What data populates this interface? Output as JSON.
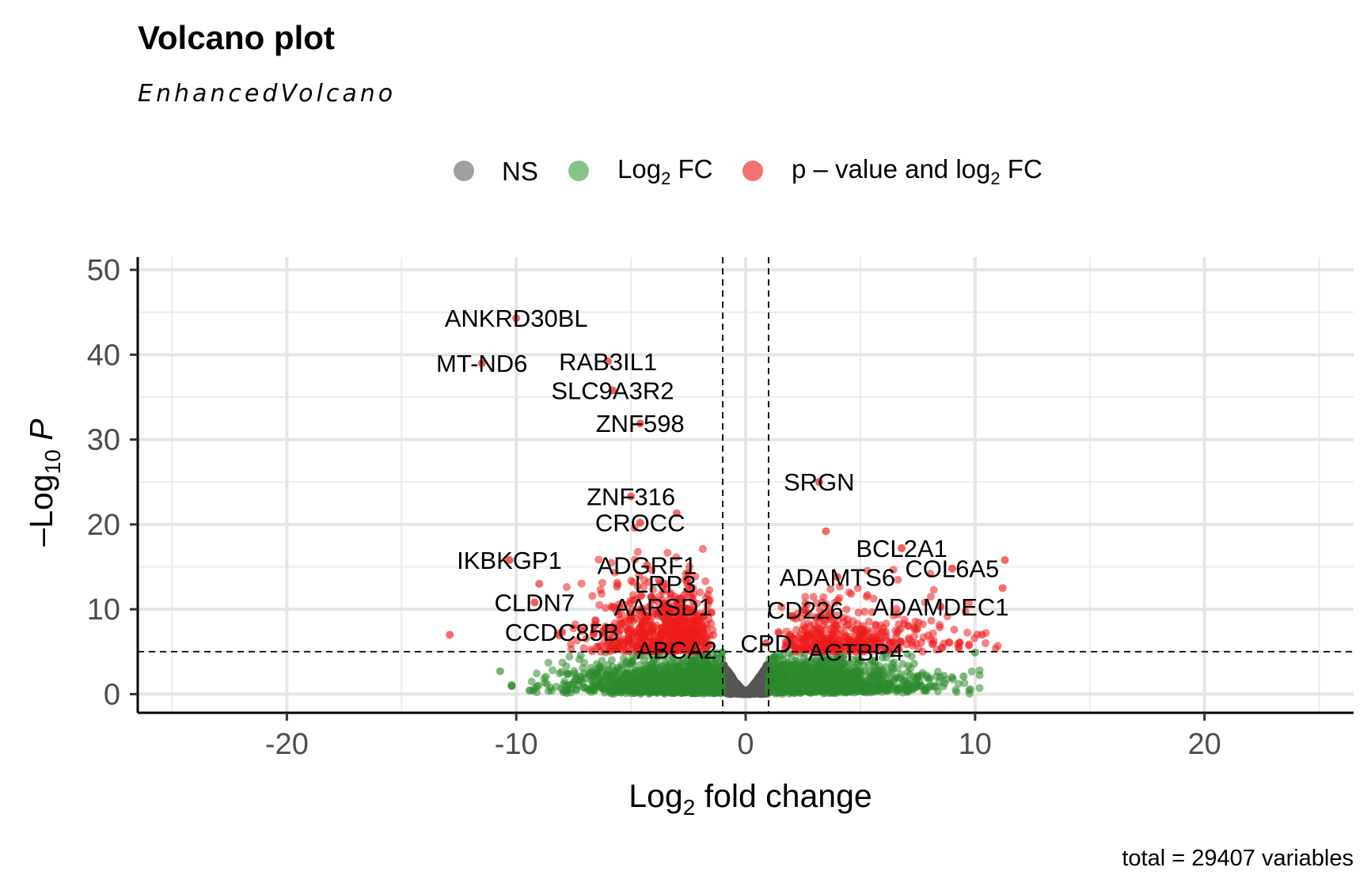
{
  "chart_data": {
    "type": "scatter",
    "title": "Volcano plot",
    "subtitle": "EnhancedVolcano",
    "xlabel_main": "Log",
    "xlabel_sub": "2",
    "xlabel_rest": " fold change",
    "ylabel_prefix": "–Log",
    "ylabel_sub": "10",
    "ylabel_var": " P",
    "caption": "total = 29407 variables",
    "xlim": [
      -26.5,
      26.5
    ],
    "ylim": [
      -2.2,
      51.5
    ],
    "x_ticks": [
      -20,
      -10,
      0,
      10,
      20
    ],
    "x_tick_labels": [
      "-20",
      "-10",
      "0",
      "10",
      "20"
    ],
    "y_ticks": [
      0,
      10,
      20,
      30,
      40,
      50
    ],
    "y_tick_labels": [
      "0",
      "10",
      "20",
      "30",
      "40",
      "50"
    ],
    "fc_cutoff": 1,
    "p_cutoff": 5,
    "grid": true,
    "legend_position": "top",
    "legend": [
      {
        "key": "ns",
        "text": "NS",
        "color": "#7f7f7f"
      },
      {
        "key": "fc",
        "text_main": "Log",
        "text_sub": "2",
        "text_rest": " FC",
        "color": "#3a9a3a"
      },
      {
        "key": "both",
        "text_main": "p – value and log",
        "text_sub": "2",
        "text_rest": " FC",
        "color": "#ee1111"
      }
    ],
    "colors": {
      "ns": "#555555",
      "fc": "#2e8b2e",
      "both": "#ee1c1c"
    },
    "labeled_genes": [
      {
        "name": "ANKRD30BL",
        "x": -10.0,
        "y": 44.3
      },
      {
        "name": "MT-ND6",
        "x": -11.5,
        "y": 39.0
      },
      {
        "name": "RAB3IL1",
        "x": -6.0,
        "y": 39.2
      },
      {
        "name": "SLC9A3R2",
        "x": -5.8,
        "y": 35.8
      },
      {
        "name": "ZNF598",
        "x": -4.6,
        "y": 31.9
      },
      {
        "name": "SRGN",
        "x": 3.2,
        "y": 25.0
      },
      {
        "name": "ZNF316",
        "x": -5.0,
        "y": 23.3
      },
      {
        "name": "CROCC",
        "x": -4.6,
        "y": 20.2
      },
      {
        "name": "BCL2A1",
        "x": 6.8,
        "y": 17.2
      },
      {
        "name": "IKBKGP1",
        "x": -10.3,
        "y": 15.8
      },
      {
        "name": "ADGRF1",
        "x": -4.3,
        "y": 15.2
      },
      {
        "name": "COL6A5",
        "x": 9.0,
        "y": 14.8
      },
      {
        "name": "ADAMTS6",
        "x": 4.0,
        "y": 13.8
      },
      {
        "name": "LRP3",
        "x": -3.5,
        "y": 13.0
      },
      {
        "name": "CLDN7",
        "x": -9.2,
        "y": 10.8
      },
      {
        "name": "AARSD1",
        "x": -3.6,
        "y": 10.3
      },
      {
        "name": "CD226",
        "x": 2.6,
        "y": 9.9
      },
      {
        "name": "ADAMDEC1",
        "x": 8.5,
        "y": 10.3
      },
      {
        "name": "CCDC85B",
        "x": -8.0,
        "y": 7.3
      },
      {
        "name": "CPD",
        "x": 0.9,
        "y": 6.0
      },
      {
        "name": "ABCA2",
        "x": -3.0,
        "y": 5.2
      },
      {
        "name": "ACTBP4",
        "x": 4.8,
        "y": 5.0
      }
    ],
    "extra_points": [
      {
        "x": -12.9,
        "y": 7.0,
        "group": "both"
      },
      {
        "x": -10.7,
        "y": 2.7,
        "group": "fc"
      },
      {
        "x": -9.0,
        "y": 13.0,
        "group": "both"
      },
      {
        "x": -3.0,
        "y": 21.3,
        "group": "both"
      },
      {
        "x": 3.5,
        "y": 19.2,
        "group": "both"
      },
      {
        "x": 11.3,
        "y": 15.8,
        "group": "both"
      },
      {
        "x": 11.2,
        "y": 12.5,
        "group": "both"
      },
      {
        "x": 10.3,
        "y": 7.0,
        "group": "both"
      },
      {
        "x": 10.0,
        "y": 4.9,
        "group": "fc"
      },
      {
        "x": 9.5,
        "y": 2.1,
        "group": "fc"
      },
      {
        "x": 9.0,
        "y": 2.0,
        "group": "fc"
      }
    ],
    "point_counts": {
      "ns": 900,
      "fc": 2600,
      "both": 1100
    }
  }
}
